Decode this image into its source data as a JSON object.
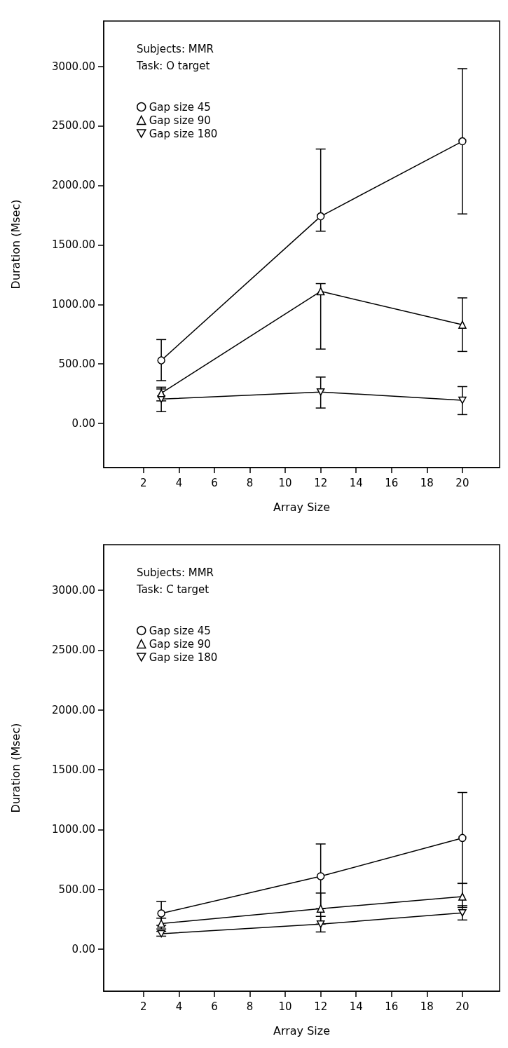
{
  "chart_data": [
    {
      "type": "line",
      "xlabel": "Array Size",
      "ylabel": "Duration (Msec)",
      "annotations": [
        "Subjects: MMR",
        "Task: O target"
      ],
      "xlim": [
        -0.25,
        22.1
      ],
      "ylim": [
        -370,
        3380
      ],
      "xticks": [
        2,
        4,
        6,
        8,
        10,
        12,
        14,
        16,
        18,
        20
      ],
      "yticks": [
        {
          "value": 0,
          "label": "0.00"
        },
        {
          "value": 500,
          "label": "500.00"
        },
        {
          "value": 1000,
          "label": "1000.00"
        },
        {
          "value": 1500,
          "label": "1500.00"
        },
        {
          "value": 2000,
          "label": "2000.00"
        },
        {
          "value": 2500,
          "label": "2500.00"
        },
        {
          "value": 3000,
          "label": "3000.00"
        }
      ],
      "x": [
        3,
        12,
        20
      ],
      "legend": "top left",
      "grid": false,
      "line_style": "solid",
      "series": [
        {
          "name": "Gap size 45",
          "color": "#000000",
          "marker": "circle",
          "values": [
            530,
            1740,
            2370
          ],
          "errors": [
            [
              360,
              705
            ],
            [
              1615,
              2305
            ],
            [
              1760,
              2980
            ]
          ]
        },
        {
          "name": "Gap size 90",
          "color": "#000000",
          "marker": "triangle",
          "values": [
            255,
            1110,
            830
          ],
          "errors": [
            [
              190,
              305
            ],
            [
              625,
              1175
            ],
            [
              605,
              1055
            ]
          ]
        },
        {
          "name": "Gap size 180",
          "color": "#000000",
          "marker": "triangle-down",
          "values": [
            205,
            265,
            195
          ],
          "errors": [
            [
              100,
              290
            ],
            [
              130,
              390
            ],
            [
              75,
              310
            ]
          ]
        }
      ]
    },
    {
      "type": "line",
      "xlabel": "Array Size",
      "ylabel": "Duration (Msec)",
      "annotations": [
        "Subjects: MMR",
        "Task: C target"
      ],
      "xlim": [
        -0.25,
        22.1
      ],
      "ylim": [
        -350,
        3380
      ],
      "xticks": [
        2,
        4,
        6,
        8,
        10,
        12,
        14,
        16,
        18,
        20
      ],
      "yticks": [
        {
          "value": 0,
          "label": "0.00"
        },
        {
          "value": 500,
          "label": "500.00"
        },
        {
          "value": 1000,
          "label": "1000.00"
        },
        {
          "value": 1500,
          "label": "1500.00"
        },
        {
          "value": 2000,
          "label": "2000.00"
        },
        {
          "value": 2500,
          "label": "2500.00"
        },
        {
          "value": 3000,
          "label": "3000.00"
        }
      ],
      "x": [
        3,
        12,
        20
      ],
      "legend": "top left",
      "grid": false,
      "line_style": "solid",
      "series": [
        {
          "name": "Gap size 45",
          "color": "#000000",
          "marker": "circle",
          "values": [
            300,
            610,
            930
          ],
          "errors": [
            [
              200,
              400
            ],
            [
              340,
              880
            ],
            [
              550,
              1310
            ]
          ]
        },
        {
          "name": "Gap size 90",
          "color": "#000000",
          "marker": "triangle",
          "values": [
            215,
            340,
            440
          ],
          "errors": [
            [
              170,
              260
            ],
            [
              210,
              470
            ],
            [
              350,
              550
            ]
          ]
        },
        {
          "name": "Gap size 180",
          "color": "#000000",
          "marker": "triangle-down",
          "values": [
            130,
            210,
            305
          ],
          "errors": [
            [
              110,
              150
            ],
            [
              145,
              275
            ],
            [
              245,
              365
            ]
          ]
        }
      ]
    }
  ]
}
